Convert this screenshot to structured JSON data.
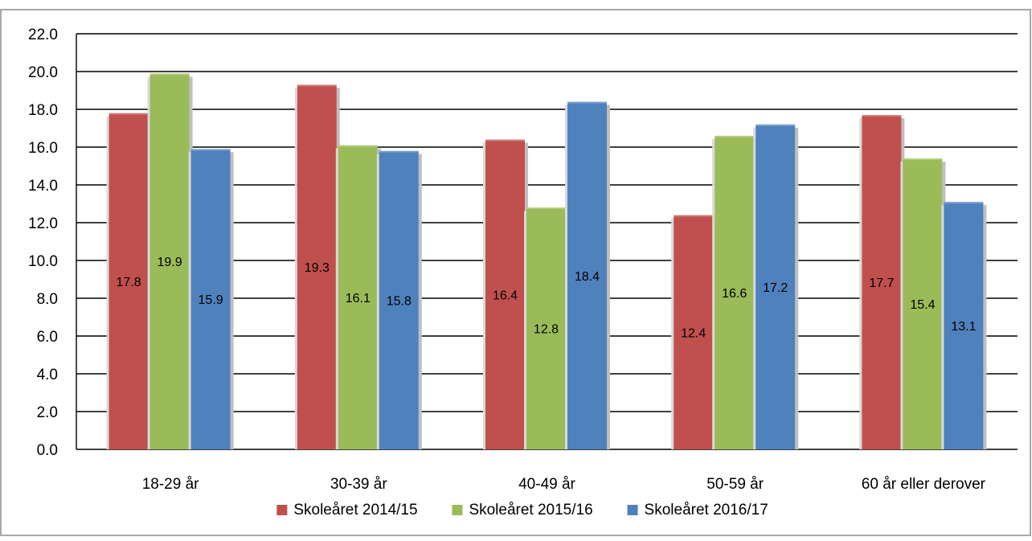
{
  "chart_data": {
    "type": "bar",
    "title": "",
    "xlabel": "",
    "ylabel": "",
    "categories": [
      "18-29 år",
      "30-39 år",
      "40-49 år",
      "50-59 år",
      "60 år eller derover"
    ],
    "series": [
      {
        "name": "Skoleåret 2014/15",
        "color": "#C0504D",
        "values": [
          17.8,
          19.3,
          16.4,
          12.4,
          17.7
        ]
      },
      {
        "name": "Skoleåret 2015/16",
        "color": "#9BBB59",
        "values": [
          19.9,
          16.1,
          12.8,
          16.6,
          15.4
        ]
      },
      {
        "name": "Skoleåret 2016/17",
        "color": "#4F81BD",
        "values": [
          15.9,
          15.8,
          18.4,
          17.2,
          13.1
        ]
      }
    ],
    "ylim": [
      0,
      22
    ],
    "yticks": [
      "0.0",
      "2.0",
      "4.0",
      "6.0",
      "8.0",
      "10.0",
      "12.0",
      "14.0",
      "16.0",
      "18.0",
      "20.0",
      "22.0"
    ],
    "grid": true,
    "legend_position": "bottom"
  }
}
